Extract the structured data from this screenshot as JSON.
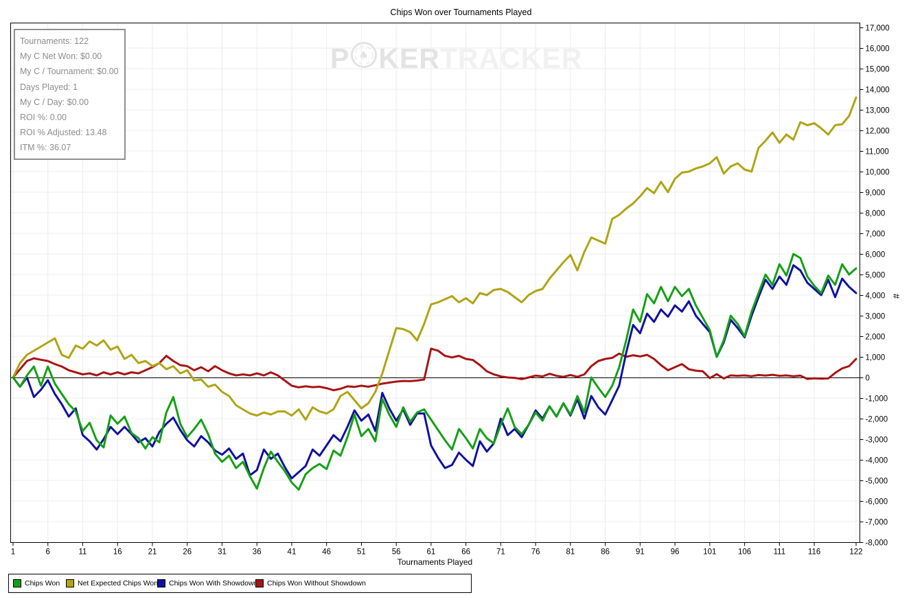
{
  "title": "Chips Won over Tournaments Played",
  "watermark": {
    "part1": "P",
    "part2": "KER",
    "part3": "TRACKER",
    "chip_icon": "poker-chip-spade"
  },
  "tooltip": {
    "lines": [
      "Tournaments: 122",
      "My C Net Won: $0.00",
      "My C / Tournament: $0.00",
      "Days Played: 1",
      "My C / Day: $0.00",
      "ROI %: 0.00",
      "ROI % Adjusted: 13.48",
      "ITM %: 36.07"
    ]
  },
  "chart_data": {
    "type": "line",
    "title": "Chips Won over Tournaments Played",
    "xlabel": "Tournaments Played",
    "ylabel": "#",
    "x_range": [
      1,
      122
    ],
    "x_ticks": [
      1,
      6,
      11,
      16,
      21,
      26,
      31,
      36,
      41,
      46,
      51,
      56,
      61,
      66,
      71,
      76,
      81,
      86,
      91,
      96,
      101,
      106,
      111,
      116,
      122
    ],
    "ylim": [
      -8000,
      17000
    ],
    "y_tick_step": 1000,
    "grid": true,
    "legend_position": "bottom",
    "zero_line": true,
    "colors": {
      "grid": "#ececec",
      "axis": "#000000",
      "background": "#ffffff"
    },
    "series": [
      {
        "name": "Chips Won",
        "color": "#14A014",
        "values": [
          0,
          -450,
          100,
          530,
          -400,
          530,
          -300,
          -800,
          -1300,
          -1650,
          -2600,
          -2200,
          -3050,
          -3400,
          -1850,
          -2250,
          -1900,
          -2700,
          -2950,
          -3450,
          -2900,
          -3150,
          -1700,
          -950,
          -2250,
          -2900,
          -2500,
          -2050,
          -2750,
          -3700,
          -4100,
          -3800,
          -4400,
          -4100,
          -4800,
          -5400,
          -4400,
          -3600,
          -4100,
          -4550,
          -5100,
          -5450,
          -4700,
          -4400,
          -4200,
          -4450,
          -3550,
          -3800,
          -2900,
          -1800,
          -2850,
          -2500,
          -3100,
          -1050,
          -1800,
          -2400,
          -1450,
          -2150,
          -1700,
          -1550,
          -2050,
          -2550,
          -3050,
          -3500,
          -2500,
          -2950,
          -3450,
          -2500,
          -2950,
          -3200,
          -2300,
          -1500,
          -2400,
          -2750,
          -2300,
          -1700,
          -2100,
          -1400,
          -1900,
          -1250,
          -1800,
          -900,
          -1700,
          0,
          -500,
          -950,
          -400,
          500,
          1800,
          3300,
          2700,
          4050,
          3600,
          4400,
          3700,
          4400,
          3950,
          4300,
          3500,
          2900,
          2300,
          1000,
          1800,
          3000,
          2600,
          2000,
          3200,
          4100,
          5000,
          4500,
          5500,
          4950,
          6000,
          5800,
          4900,
          4450,
          4100,
          4950,
          4500,
          5500,
          5000,
          5300
        ]
      },
      {
        "name": "Net Expected Chips Won",
        "color": "#AFA413",
        "values": [
          0,
          700,
          1100,
          1300,
          1500,
          1700,
          1900,
          1100,
          950,
          1550,
          1400,
          1750,
          1550,
          1800,
          1350,
          1500,
          900,
          1100,
          700,
          800,
          550,
          700,
          400,
          550,
          200,
          350,
          -150,
          -100,
          -450,
          -350,
          -700,
          -900,
          -1350,
          -1550,
          -1750,
          -1850,
          -1700,
          -1800,
          -1650,
          -1650,
          -1850,
          -1550,
          -2050,
          -1450,
          -1650,
          -1750,
          -1550,
          -900,
          -700,
          -1100,
          -1500,
          -1250,
          -700,
          200,
          1300,
          2400,
          2350,
          2200,
          1800,
          2600,
          3550,
          3650,
          3800,
          3950,
          3650,
          3850,
          3600,
          4100,
          4000,
          4250,
          4300,
          4150,
          3900,
          3650,
          4000,
          4200,
          4300,
          4800,
          5200,
          5600,
          5950,
          5200,
          6100,
          6800,
          6650,
          6500,
          7700,
          7900,
          8200,
          8450,
          8800,
          9200,
          8950,
          9500,
          9000,
          9650,
          9950,
          10000,
          10150,
          10250,
          10400,
          10700,
          9900,
          10250,
          10400,
          10100,
          10000,
          11150,
          11500,
          11900,
          11400,
          11800,
          11550,
          12400,
          12250,
          12350,
          12100,
          11800,
          12250,
          12300,
          12700,
          13600
        ]
      },
      {
        "name": "Chips Won With Showdown",
        "color": "#1010A0",
        "values": [
          0,
          -450,
          0,
          -950,
          -600,
          -130,
          -800,
          -1300,
          -1900,
          -1500,
          -2800,
          -3100,
          -3500,
          -3000,
          -2400,
          -2750,
          -2400,
          -2750,
          -3150,
          -2950,
          -3350,
          -2650,
          -2250,
          -1950,
          -2550,
          -3050,
          -3350,
          -2850,
          -3150,
          -3550,
          -3750,
          -3450,
          -3950,
          -3700,
          -4750,
          -4500,
          -3500,
          -3950,
          -3700,
          -4350,
          -4900,
          -4600,
          -4300,
          -3500,
          -3800,
          -3300,
          -2800,
          -3100,
          -2400,
          -1600,
          -2100,
          -1800,
          -2600,
          -750,
          -1500,
          -2100,
          -1550,
          -2300,
          -1750,
          -1750,
          -3300,
          -3900,
          -4400,
          -4250,
          -3650,
          -4000,
          -4300,
          -3100,
          -3600,
          -3200,
          -2000,
          -2800,
          -2500,
          -2900,
          -2300,
          -1600,
          -2000,
          -1400,
          -1900,
          -1250,
          -1850,
          -1050,
          -2000,
          -900,
          -1450,
          -1800,
          -1100,
          -400,
          1200,
          2550,
          2150,
          3100,
          2700,
          3300,
          2950,
          3500,
          3200,
          3700,
          3000,
          2600,
          2200,
          1000,
          1700,
          2800,
          2400,
          1950,
          3000,
          3900,
          4750,
          4300,
          4900,
          4500,
          5450,
          5200,
          4600,
          4300,
          4000,
          4750,
          3900,
          4800,
          4400,
          4100
        ]
      },
      {
        "name": "Chips Won Without Showdown",
        "color": "#A81414",
        "values": [
          0,
          400,
          800,
          930,
          860,
          800,
          650,
          530,
          350,
          250,
          150,
          200,
          100,
          250,
          150,
          250,
          150,
          250,
          200,
          350,
          500,
          700,
          1050,
          800,
          600,
          550,
          350,
          500,
          300,
          550,
          350,
          200,
          100,
          150,
          100,
          200,
          100,
          250,
          100,
          -150,
          -400,
          -480,
          -430,
          -470,
          -450,
          -520,
          -620,
          -550,
          -430,
          -460,
          -400,
          -450,
          -380,
          -300,
          -250,
          -200,
          -170,
          -180,
          -150,
          -100,
          1400,
          1300,
          1050,
          975,
          1050,
          900,
          850,
          600,
          300,
          150,
          50,
          0,
          -20,
          -80,
          0,
          90,
          50,
          180,
          80,
          30,
          120,
          30,
          150,
          550,
          800,
          900,
          950,
          1160,
          1000,
          1080,
          1020,
          1100,
          900,
          600,
          350,
          500,
          650,
          400,
          330,
          300,
          -30,
          160,
          -50,
          100,
          80,
          100,
          60,
          120,
          90,
          130,
          80,
          100,
          60,
          90,
          -70,
          -40,
          -60,
          -50,
          220,
          440,
          550,
          900
        ]
      }
    ]
  }
}
